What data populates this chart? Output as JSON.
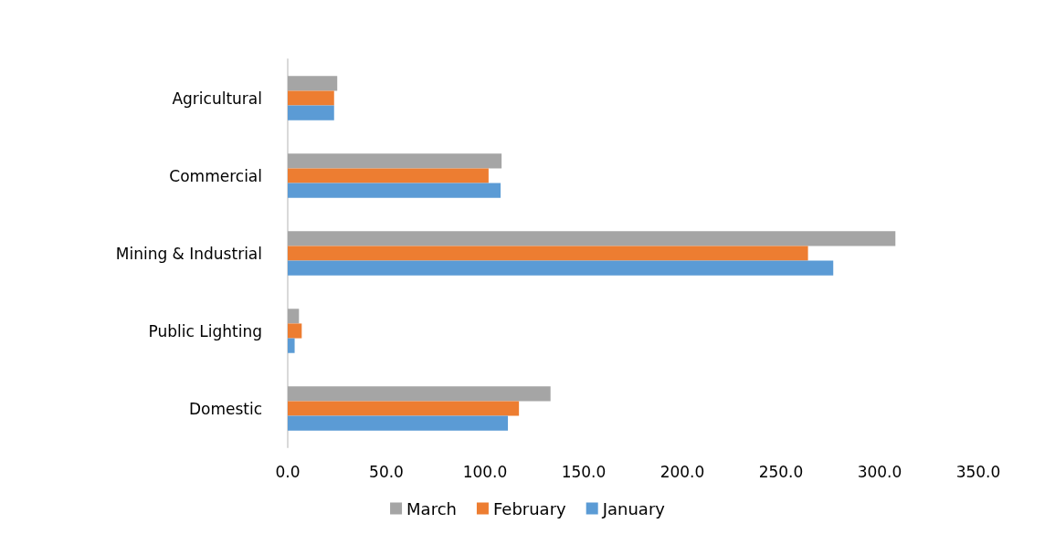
{
  "chart_data": {
    "type": "bar",
    "orientation": "horizontal",
    "categories": [
      "Agricultural",
      "Commercial",
      "Mining & Industrial",
      "Public Lighting",
      "Domestic"
    ],
    "series": [
      {
        "name": "March",
        "color": "#a5a5a5",
        "values": [
          25.1,
          108.4,
          308.0,
          5.7,
          133.2
        ]
      },
      {
        "name": "February",
        "color": "#ed7d31",
        "values": [
          23.5,
          101.8,
          263.7,
          7.1,
          117.2
        ]
      },
      {
        "name": "January",
        "color": "#5b9bd5",
        "values": [
          23.5,
          107.9,
          276.5,
          3.5,
          111.6
        ]
      }
    ],
    "xlim": [
      0,
      350
    ],
    "xticks": [
      {
        "value": 0,
        "label": "0.0"
      },
      {
        "value": 50,
        "label": "50.0"
      },
      {
        "value": 100,
        "label": "100.0"
      },
      {
        "value": 150,
        "label": "150.0"
      },
      {
        "value": 200,
        "label": "200.0"
      },
      {
        "value": 250,
        "label": "250.0"
      },
      {
        "value": 300,
        "label": "300.0"
      },
      {
        "value": 350,
        "label": "350.0"
      }
    ],
    "grid": false,
    "legend": "bottom"
  }
}
